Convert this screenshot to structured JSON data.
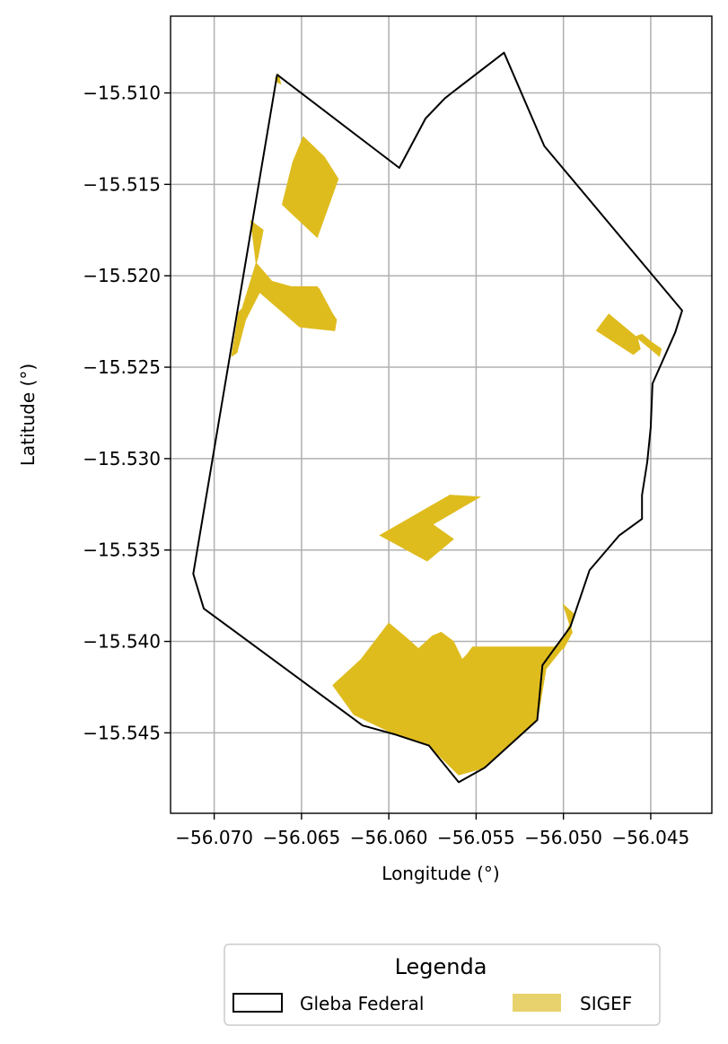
{
  "map": {
    "xlabel": "Longitude (°)",
    "ylabel": "Latitude (°)",
    "xlim": [
      -56.0725,
      -56.0415
    ],
    "ylim": [
      -15.5494,
      -15.5058
    ],
    "grid": true,
    "x_ticks": [
      -56.07,
      -56.065,
      -56.06,
      -56.055,
      -56.05,
      -56.045
    ],
    "x_tick_labels": [
      "−56.070",
      "−56.065",
      "−56.060",
      "−56.055",
      "−56.050",
      "−56.045"
    ],
    "y_ticks": [
      -15.51,
      -15.515,
      -15.52,
      -15.525,
      -15.53,
      -15.535,
      -15.54,
      -15.545
    ],
    "y_tick_labels": [
      "−15.510",
      "−15.515",
      "−15.520",
      "−15.525",
      "−15.530",
      "−15.535",
      "−15.540",
      "−15.545"
    ],
    "gleba_federal": {
      "label": "Gleba Federal",
      "edge_color": "#000000",
      "coords": [
        [
          -56.0664,
          -15.509
        ],
        [
          -56.0594,
          -15.5141
        ],
        [
          -56.0579,
          -15.5114
        ],
        [
          -56.0577,
          -15.5112
        ],
        [
          -56.0568,
          -15.5103
        ],
        [
          -56.0564,
          -15.51
        ],
        [
          -56.0534,
          -15.5078
        ],
        [
          -56.0511,
          -15.5129
        ],
        [
          -56.0432,
          -15.5219
        ],
        [
          -56.0436,
          -15.5231
        ],
        [
          -56.0449,
          -15.5259
        ],
        [
          -56.045,
          -15.5283
        ],
        [
          -56.0452,
          -15.5302
        ],
        [
          -56.0455,
          -15.532
        ],
        [
          -56.0455,
          -15.5333
        ],
        [
          -56.0468,
          -15.5342
        ],
        [
          -56.0485,
          -15.5361
        ],
        [
          -56.0496,
          -15.5392
        ],
        [
          -56.0512,
          -15.5413
        ],
        [
          -56.0515,
          -15.5443
        ],
        [
          -56.0545,
          -15.5469
        ],
        [
          -56.056,
          -15.5477
        ],
        [
          -56.0577,
          -15.5457
        ],
        [
          -56.0596,
          -15.5451
        ],
        [
          -56.0615,
          -15.5446
        ],
        [
          -56.0706,
          -15.5382
        ],
        [
          -56.0712,
          -15.5363
        ],
        [
          -56.0664,
          -15.509
        ]
      ]
    },
    "sigef": {
      "label": "SIGEF",
      "fill_color": "#DFBC1E",
      "polygons": [
        [
          [
            -56.0665,
            -15.5092
          ],
          [
            -56.0663,
            -15.509
          ],
          [
            -56.0662,
            -15.5095
          ],
          [
            -56.0664,
            -15.5094
          ]
        ],
        [
          [
            -56.0649,
            -15.5124
          ],
          [
            -56.0637,
            -15.5135
          ],
          [
            -56.0629,
            -15.5147
          ],
          [
            -56.0641,
            -15.5179
          ],
          [
            -56.0661,
            -15.5161
          ],
          [
            -56.0655,
            -15.5138
          ]
        ],
        [
          [
            -56.0679,
            -15.517
          ],
          [
            -56.0672,
            -15.5175
          ],
          [
            -56.0675,
            -15.519
          ],
          [
            -56.0684,
            -15.5218
          ],
          [
            -56.0686,
            -15.522
          ],
          [
            -56.069,
            -15.5244
          ],
          [
            -56.0687,
            -15.5242
          ],
          [
            -56.0682,
            -15.5224
          ],
          [
            -56.0674,
            -15.5209
          ],
          [
            -56.0651,
            -15.5228
          ],
          [
            -56.0631,
            -15.523
          ],
          [
            -56.063,
            -15.5224
          ],
          [
            -56.0635,
            -15.5217
          ],
          [
            -56.0641,
            -15.5206
          ],
          [
            -56.0656,
            -15.5206
          ],
          [
            -56.0667,
            -15.5203
          ],
          [
            -56.0676,
            -15.5193
          ]
        ],
        [
          [
            -56.0652,
            -15.5207
          ],
          [
            -56.064,
            -15.5207
          ],
          [
            -56.0631,
            -15.5223
          ],
          [
            -56.064,
            -15.5225
          ]
        ],
        [
          [
            -56.0474,
            -15.5221
          ],
          [
            -56.0478,
            -15.5226
          ],
          [
            -56.0481,
            -15.523
          ],
          [
            -56.046,
            -15.5243
          ],
          [
            -56.0456,
            -15.524
          ],
          [
            -56.0458,
            -15.5233
          ],
          [
            -56.0455,
            -15.5232
          ],
          [
            -56.045,
            -15.5236
          ],
          [
            -56.0444,
            -15.524
          ],
          [
            -56.0445,
            -15.5244
          ]
        ],
        [
          [
            -56.0548,
            -15.5321
          ],
          [
            -56.0575,
            -15.5336
          ],
          [
            -56.0563,
            -15.5344
          ],
          [
            -56.0578,
            -15.5356
          ],
          [
            -56.0605,
            -15.5342
          ],
          [
            -56.0565,
            -15.532
          ]
        ],
        [
          [
            -56.05,
            -15.538
          ],
          [
            -56.0494,
            -15.5385
          ],
          [
            -56.0496,
            -15.539
          ],
          [
            -56.05,
            -15.5398
          ],
          [
            -56.0505,
            -15.5403
          ],
          [
            -56.05,
            -15.5404
          ],
          [
            -56.0495,
            -15.5395
          ]
        ],
        [
          [
            -56.06,
            -15.539
          ],
          [
            -56.059,
            -15.5398
          ],
          [
            -56.0583,
            -15.5404
          ],
          [
            -56.0575,
            -15.5397
          ],
          [
            -56.057,
            -15.5395
          ],
          [
            -56.0563,
            -15.54
          ],
          [
            -56.0558,
            -15.541
          ],
          [
            -56.0555,
            -15.5407
          ],
          [
            -56.0552,
            -15.5403
          ],
          [
            -56.0511,
            -15.5403
          ],
          [
            -56.05,
            -15.5403
          ],
          [
            -56.051,
            -15.5415
          ],
          [
            -56.0515,
            -15.5443
          ],
          [
            -56.0545,
            -15.5469
          ],
          [
            -56.056,
            -15.5473
          ],
          [
            -56.0577,
            -15.5457
          ],
          [
            -56.0596,
            -15.5451
          ],
          [
            -56.062,
            -15.544
          ],
          [
            -56.0632,
            -15.5424
          ],
          [
            -56.0616,
            -15.541
          ]
        ]
      ]
    }
  },
  "legend": {
    "title": "Legenda",
    "items": [
      {
        "label": "Gleba Federal",
        "kind": "outline",
        "edge": "#000000"
      },
      {
        "label": "SIGEF",
        "kind": "fill",
        "fill": "#E8D26D"
      }
    ]
  }
}
